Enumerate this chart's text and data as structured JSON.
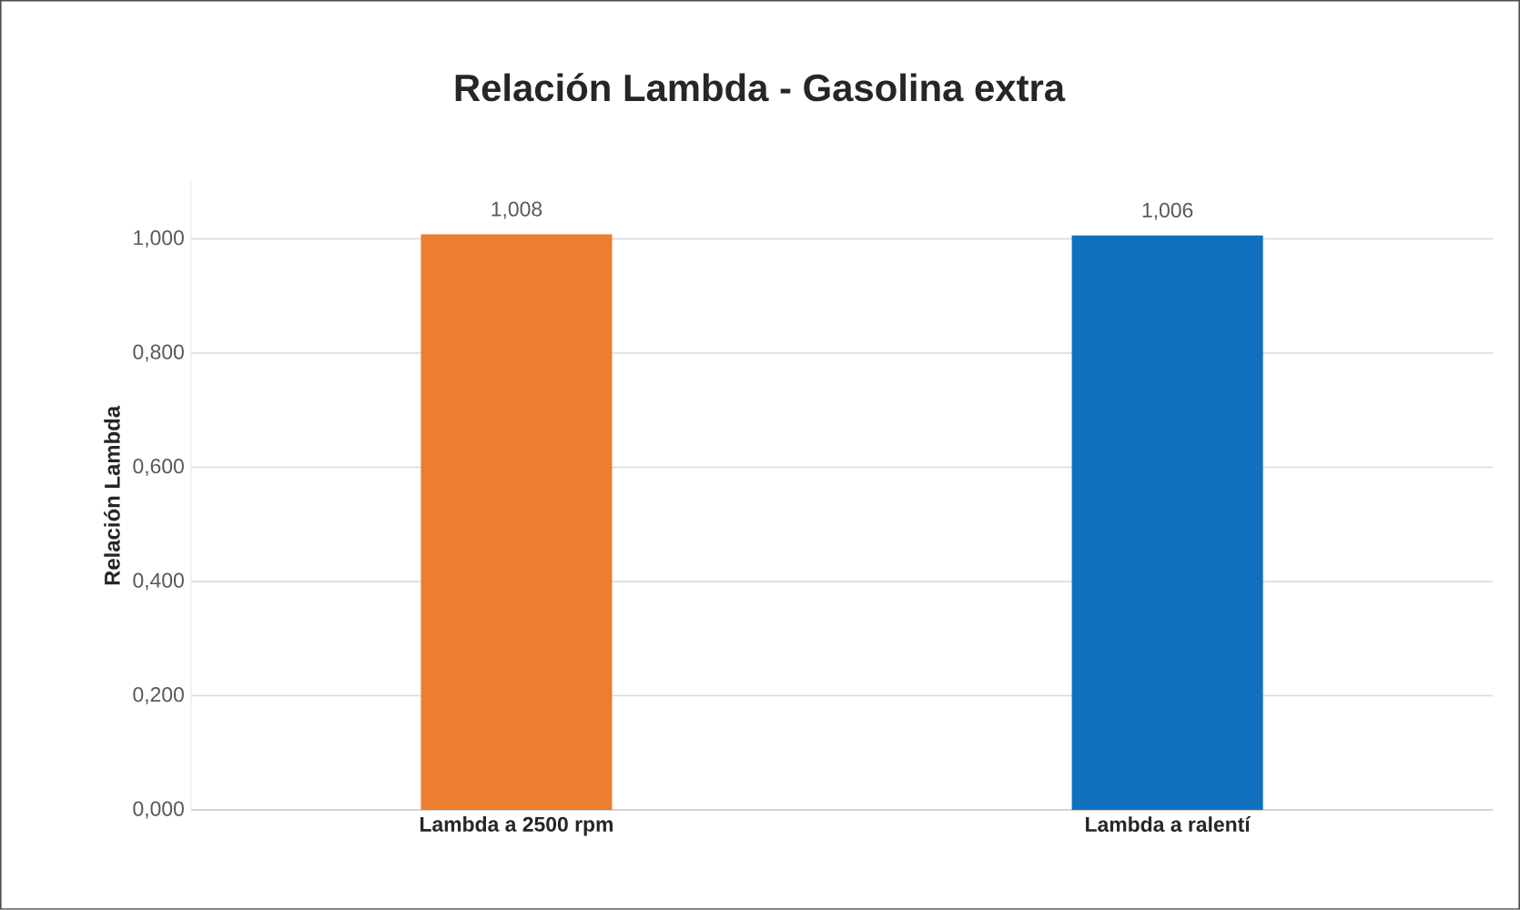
{
  "chart_data": {
    "type": "bar",
    "title": "Relación Lambda - Gasolina extra",
    "ylabel": "Relación Lambda",
    "categories": [
      "Lambda a 2500 rpm",
      "Lambda a ralentí"
    ],
    "values": [
      1.008,
      1.006
    ],
    "colors": [
      "#ed7d31",
      "#1170be"
    ],
    "value_labels": [
      "1,008",
      "1,006"
    ],
    "ylim": [
      0,
      1.1
    ],
    "yticks": [
      {
        "value": 0,
        "label": "0,000"
      },
      {
        "value": 0.2,
        "label": "0,200"
      },
      {
        "value": 0.4,
        "label": "0,400"
      },
      {
        "value": 0.6,
        "label": "0,600"
      },
      {
        "value": 0.8,
        "label": "0,800"
      },
      {
        "value": 1.0,
        "label": "1,000"
      }
    ],
    "grid": "y"
  }
}
